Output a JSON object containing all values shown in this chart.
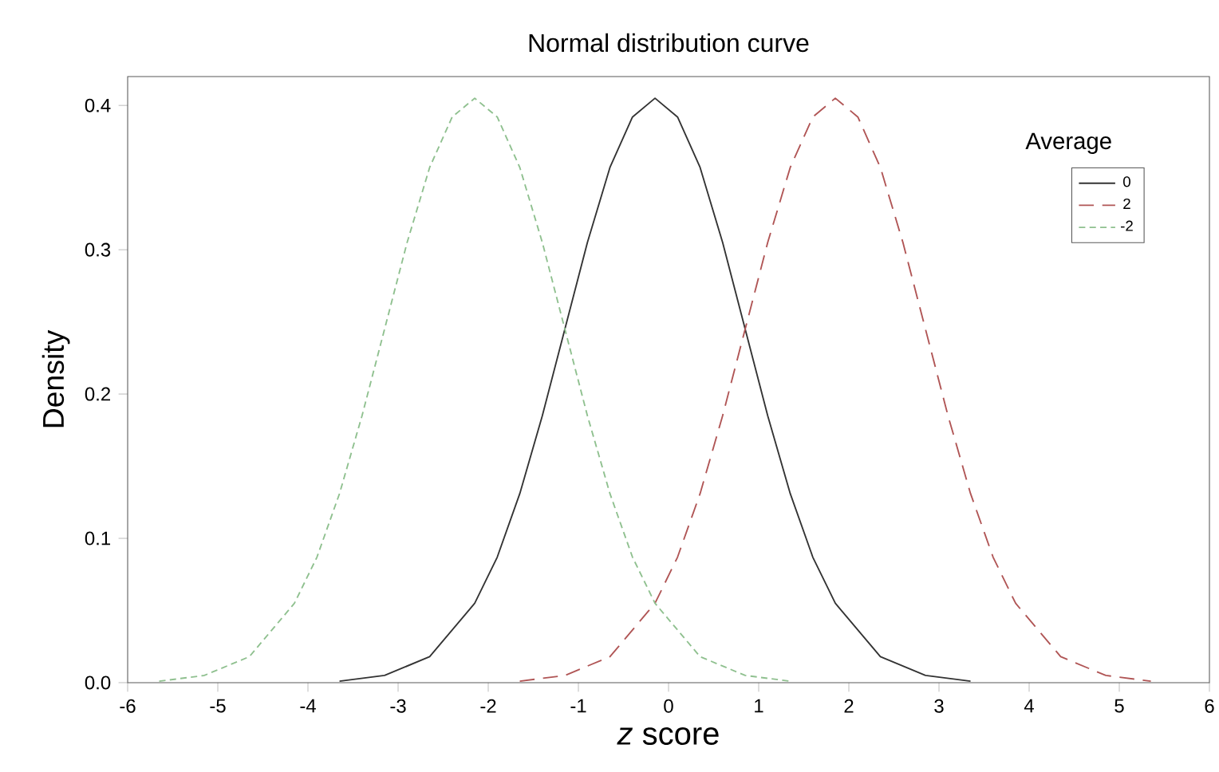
{
  "chart_data": {
    "type": "line",
    "title": "Normal distribution curve",
    "xlabel": "*z* score",
    "ylabel": "Density",
    "legend_title": "Average",
    "xlim": [
      -6,
      6
    ],
    "ylim": [
      0,
      0.42
    ],
    "xticks": [
      -6,
      -5,
      -4,
      -3,
      -2,
      -1,
      0,
      1,
      2,
      3,
      4,
      5,
      6
    ],
    "yticks": [
      {
        "value": 0,
        "label": "0.0"
      },
      0.1,
      0.2,
      0.3,
      0.4
    ],
    "grid": false,
    "legend": "top right",
    "marker": "none",
    "series": [
      {
        "name": "0",
        "color": "#333333",
        "line_style": "solid",
        "x": [
          -3.65,
          -3.15,
          -2.65,
          -2.15,
          -1.9,
          -1.65,
          -1.4,
          -1.15,
          -0.9,
          -0.65,
          -0.4,
          -0.15,
          0.1,
          0.35,
          0.6,
          0.85,
          1.1,
          1.35,
          1.6,
          1.85,
          2.35,
          2.85,
          3.35
        ],
        "values": [
          0.001,
          0.005,
          0.018,
          0.055,
          0.087,
          0.131,
          0.185,
          0.245,
          0.305,
          0.357,
          0.392,
          0.405,
          0.392,
          0.357,
          0.305,
          0.245,
          0.185,
          0.131,
          0.087,
          0.055,
          0.018,
          0.005,
          0.001
        ]
      },
      {
        "name": "2",
        "color": "#b05555",
        "line_style": "dashed",
        "x": [
          -1.65,
          -1.15,
          -0.65,
          -0.15,
          0.1,
          0.35,
          0.6,
          0.85,
          1.1,
          1.35,
          1.6,
          1.85,
          2.1,
          2.35,
          2.6,
          2.85,
          3.1,
          3.35,
          3.6,
          3.85,
          4.35,
          4.85,
          5.35
        ],
        "values": [
          0.001,
          0.005,
          0.018,
          0.055,
          0.087,
          0.131,
          0.185,
          0.245,
          0.305,
          0.357,
          0.392,
          0.405,
          0.392,
          0.357,
          0.305,
          0.245,
          0.185,
          0.131,
          0.087,
          0.055,
          0.018,
          0.005,
          0.001
        ]
      },
      {
        "name": "-2",
        "color": "#8fc08f",
        "line_style": "dotted",
        "x": [
          -5.65,
          -5.15,
          -4.65,
          -4.15,
          -3.9,
          -3.65,
          -3.4,
          -3.15,
          -2.9,
          -2.65,
          -2.4,
          -2.15,
          -1.9,
          -1.65,
          -1.4,
          -1.15,
          -0.9,
          -0.65,
          -0.4,
          -0.15,
          0.35,
          0.85,
          1.35
        ],
        "values": [
          0.001,
          0.005,
          0.018,
          0.055,
          0.087,
          0.131,
          0.185,
          0.245,
          0.305,
          0.357,
          0.392,
          0.405,
          0.392,
          0.357,
          0.305,
          0.245,
          0.185,
          0.131,
          0.087,
          0.055,
          0.018,
          0.005,
          0.001
        ]
      }
    ]
  }
}
